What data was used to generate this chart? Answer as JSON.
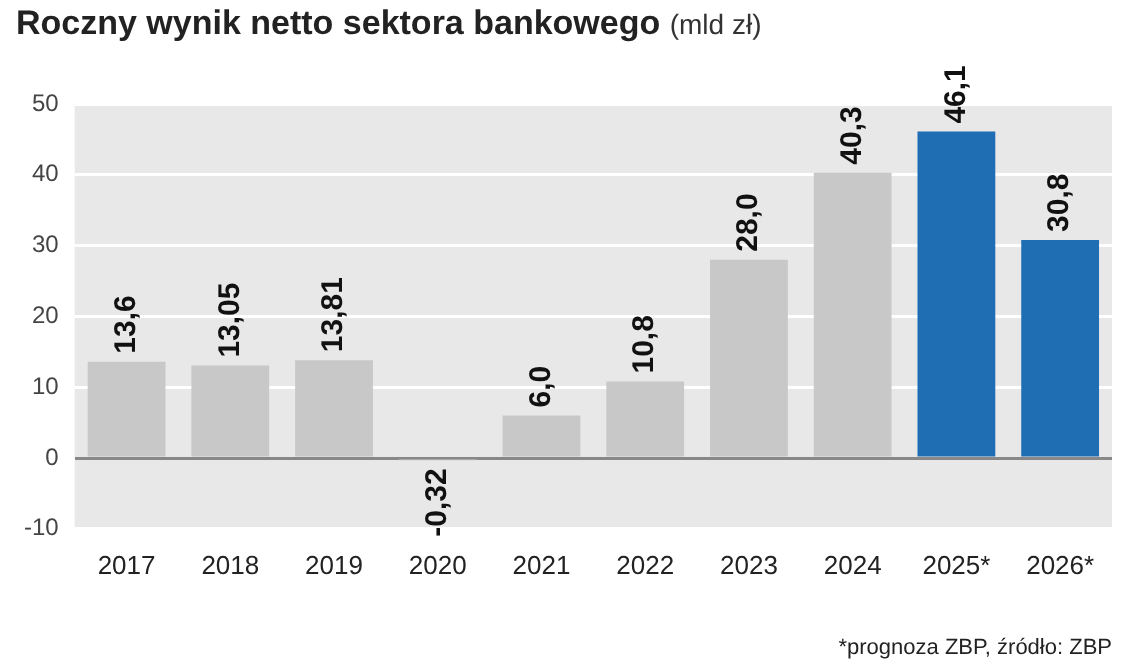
{
  "chart_data": {
    "type": "bar",
    "title": "Roczny wynik netto sektora bankowego",
    "subtitle": "(mld zł)",
    "categories": [
      "2017",
      "2018",
      "2019",
      "2020",
      "2021",
      "2022",
      "2023",
      "2024",
      "2025*",
      "2026*"
    ],
    "values": [
      13.6,
      13.05,
      13.81,
      -0.32,
      6.0,
      10.8,
      28.0,
      40.3,
      46.1,
      30.8
    ],
    "value_labels": [
      "13,6",
      "13,05",
      "13,81",
      "-0,32",
      "6,0",
      "10,8",
      "28,0",
      "40,3",
      "46,1",
      "30,8"
    ],
    "colors": [
      "#c8c8c8",
      "#c8c8c8",
      "#c8c8c8",
      "#c8c8c8",
      "#c8c8c8",
      "#c8c8c8",
      "#c8c8c8",
      "#c8c8c8",
      "#1f6db3",
      "#1f6db3"
    ],
    "ylim": [
      -10,
      50
    ],
    "yticks": [
      -10,
      0,
      10,
      20,
      30,
      40,
      50
    ],
    "grid": "y",
    "annotations": [
      "*prognoza ZBP, źródło: ZBP"
    ]
  }
}
